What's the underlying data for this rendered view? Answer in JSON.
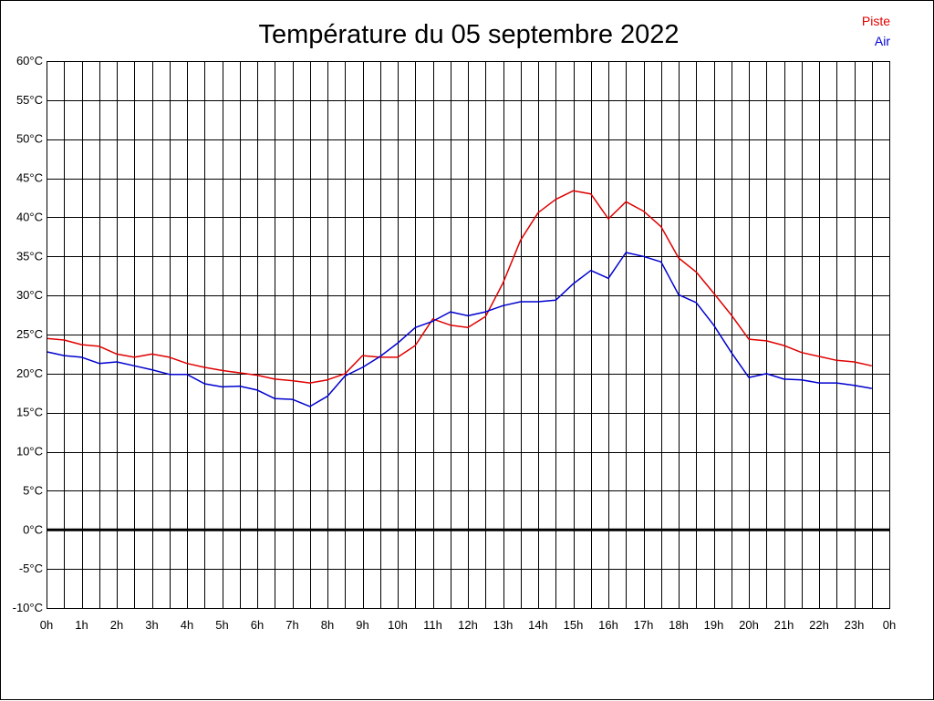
{
  "chart_data": {
    "type": "line",
    "title": "Température du 05 septembre 2022",
    "xlabel": "",
    "ylabel": "",
    "x_ticks": [
      "0h",
      "1h",
      "2h",
      "3h",
      "4h",
      "5h",
      "6h",
      "7h",
      "8h",
      "9h",
      "10h",
      "11h",
      "12h",
      "13h",
      "14h",
      "15h",
      "16h",
      "17h",
      "18h",
      "19h",
      "20h",
      "21h",
      "22h",
      "23h",
      "0h"
    ],
    "y_ticks": [
      "-10°C",
      "-5°C",
      "0°C",
      "5°C",
      "10°C",
      "15°C",
      "20°C",
      "25°C",
      "30°C",
      "35°C",
      "40°C",
      "45°C",
      "50°C",
      "55°C",
      "60°C"
    ],
    "xlim": [
      0,
      24
    ],
    "ylim": [
      -10,
      60
    ],
    "grid": true,
    "zero_line": true,
    "legend": "top-right",
    "series": [
      {
        "name": "Piste",
        "color": "#e00000",
        "points": [
          [
            0,
            24.5
          ],
          [
            0.5,
            24.3
          ],
          [
            1,
            23.7
          ],
          [
            1.5,
            23.5
          ],
          [
            2,
            22.5
          ],
          [
            2.5,
            22.1
          ],
          [
            3,
            22.5
          ],
          [
            3.5,
            22.1
          ],
          [
            4,
            21.3
          ],
          [
            4.5,
            20.8
          ],
          [
            5,
            20.4
          ],
          [
            5.5,
            20.1
          ],
          [
            6,
            19.8
          ],
          [
            6.5,
            19.3
          ],
          [
            7,
            19.1
          ],
          [
            7.5,
            18.8
          ],
          [
            8,
            19.2
          ],
          [
            8.5,
            20.0
          ],
          [
            9,
            22.3
          ],
          [
            9.5,
            22.1
          ],
          [
            10,
            22.1
          ],
          [
            10.5,
            23.6
          ],
          [
            11,
            27.0
          ],
          [
            11.5,
            26.2
          ],
          [
            12,
            25.9
          ],
          [
            12.5,
            27.3
          ],
          [
            13,
            31.6
          ],
          [
            13.5,
            37.1
          ],
          [
            14,
            40.6
          ],
          [
            14.5,
            42.3
          ],
          [
            15,
            43.4
          ],
          [
            15.5,
            43.0
          ],
          [
            16,
            39.8
          ],
          [
            16.5,
            42.0
          ],
          [
            17,
            40.8
          ],
          [
            17.5,
            38.8
          ],
          [
            18,
            34.8
          ],
          [
            18.5,
            33.0
          ],
          [
            19,
            30.3
          ],
          [
            19.5,
            27.5
          ],
          [
            20,
            24.4
          ],
          [
            20.5,
            24.2
          ],
          [
            21,
            23.6
          ],
          [
            21.5,
            22.7
          ],
          [
            22,
            22.2
          ],
          [
            22.5,
            21.7
          ],
          [
            23,
            21.5
          ],
          [
            23.5,
            21.0
          ]
        ]
      },
      {
        "name": "Air",
        "color": "#0000d0",
        "points": [
          [
            0,
            22.8
          ],
          [
            0.5,
            22.3
          ],
          [
            1,
            22.1
          ],
          [
            1.5,
            21.3
          ],
          [
            2,
            21.5
          ],
          [
            2.5,
            21.0
          ],
          [
            3,
            20.5
          ],
          [
            3.5,
            19.9
          ],
          [
            4,
            19.9
          ],
          [
            4.5,
            18.7
          ],
          [
            5,
            18.3
          ],
          [
            5.5,
            18.4
          ],
          [
            6,
            17.9
          ],
          [
            6.5,
            16.8
          ],
          [
            7,
            16.7
          ],
          [
            7.5,
            15.8
          ],
          [
            8,
            17.1
          ],
          [
            8.5,
            19.7
          ],
          [
            9,
            20.8
          ],
          [
            9.5,
            22.2
          ],
          [
            10,
            23.9
          ],
          [
            10.5,
            25.9
          ],
          [
            11,
            26.7
          ],
          [
            11.5,
            27.9
          ],
          [
            12,
            27.4
          ],
          [
            12.5,
            27.9
          ],
          [
            13,
            28.7
          ],
          [
            13.5,
            29.2
          ],
          [
            14,
            29.2
          ],
          [
            14.5,
            29.4
          ],
          [
            15,
            31.5
          ],
          [
            15.5,
            33.2
          ],
          [
            16,
            32.2
          ],
          [
            16.5,
            35.5
          ],
          [
            17,
            35.0
          ],
          [
            17.5,
            34.3
          ],
          [
            18,
            30.1
          ],
          [
            18.5,
            29.1
          ],
          [
            19,
            26.2
          ],
          [
            19.5,
            22.7
          ],
          [
            20,
            19.5
          ],
          [
            20.5,
            20.0
          ],
          [
            21,
            19.3
          ],
          [
            21.5,
            19.2
          ],
          [
            22,
            18.8
          ],
          [
            22.5,
            18.8
          ],
          [
            23,
            18.5
          ],
          [
            23.5,
            18.1
          ]
        ]
      }
    ]
  }
}
